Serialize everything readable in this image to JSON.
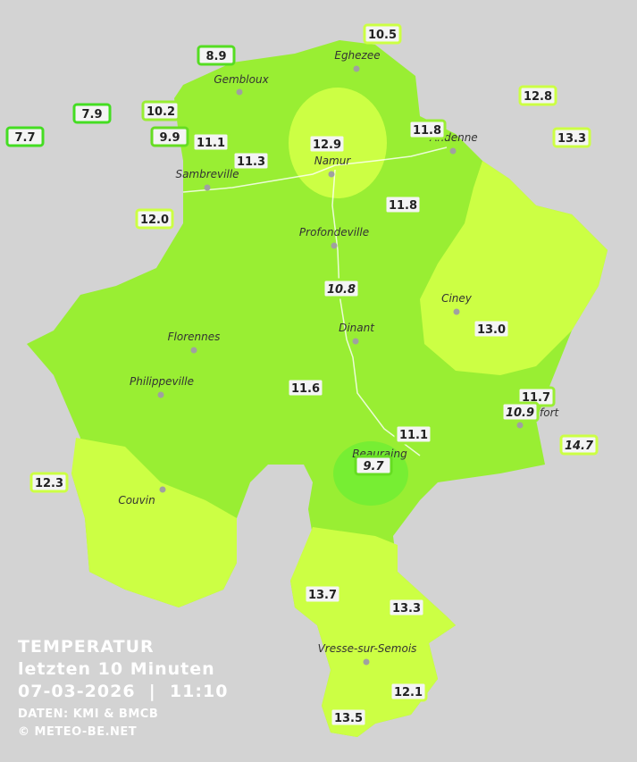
{
  "legend": {
    "title": "TEMPERATUR",
    "subtitle": "letzten 10 Minuten",
    "timestamp": "07-03-2026  |  11:10",
    "source": "DATEN: KMI & BMCB",
    "copyright": "© METEO-BE.NET"
  },
  "cities": [
    "Eghezee",
    "Gembloux",
    "Andenne",
    "Namur",
    "Sambreville",
    "Profondeville",
    "Ciney",
    "Dinant",
    "Florennes",
    "Philippeville",
    "Beauraing",
    "Rochefort",
    "Couvin",
    "Vresse-sur-Semois"
  ],
  "stations": [
    "8.9",
    "10.5",
    "7.9",
    "7.7",
    "10.2",
    "9.9",
    "11.1",
    "11.3",
    "12.9",
    "11.8",
    "12.8",
    "13.3",
    "12.0",
    "11.8",
    "10.8",
    "13.0",
    "11.6",
    "11.7",
    "10.9",
    "14.7",
    "11.1",
    "9.7",
    "12.3",
    "13.7",
    "13.3",
    "12.1",
    "13.5"
  ]
}
